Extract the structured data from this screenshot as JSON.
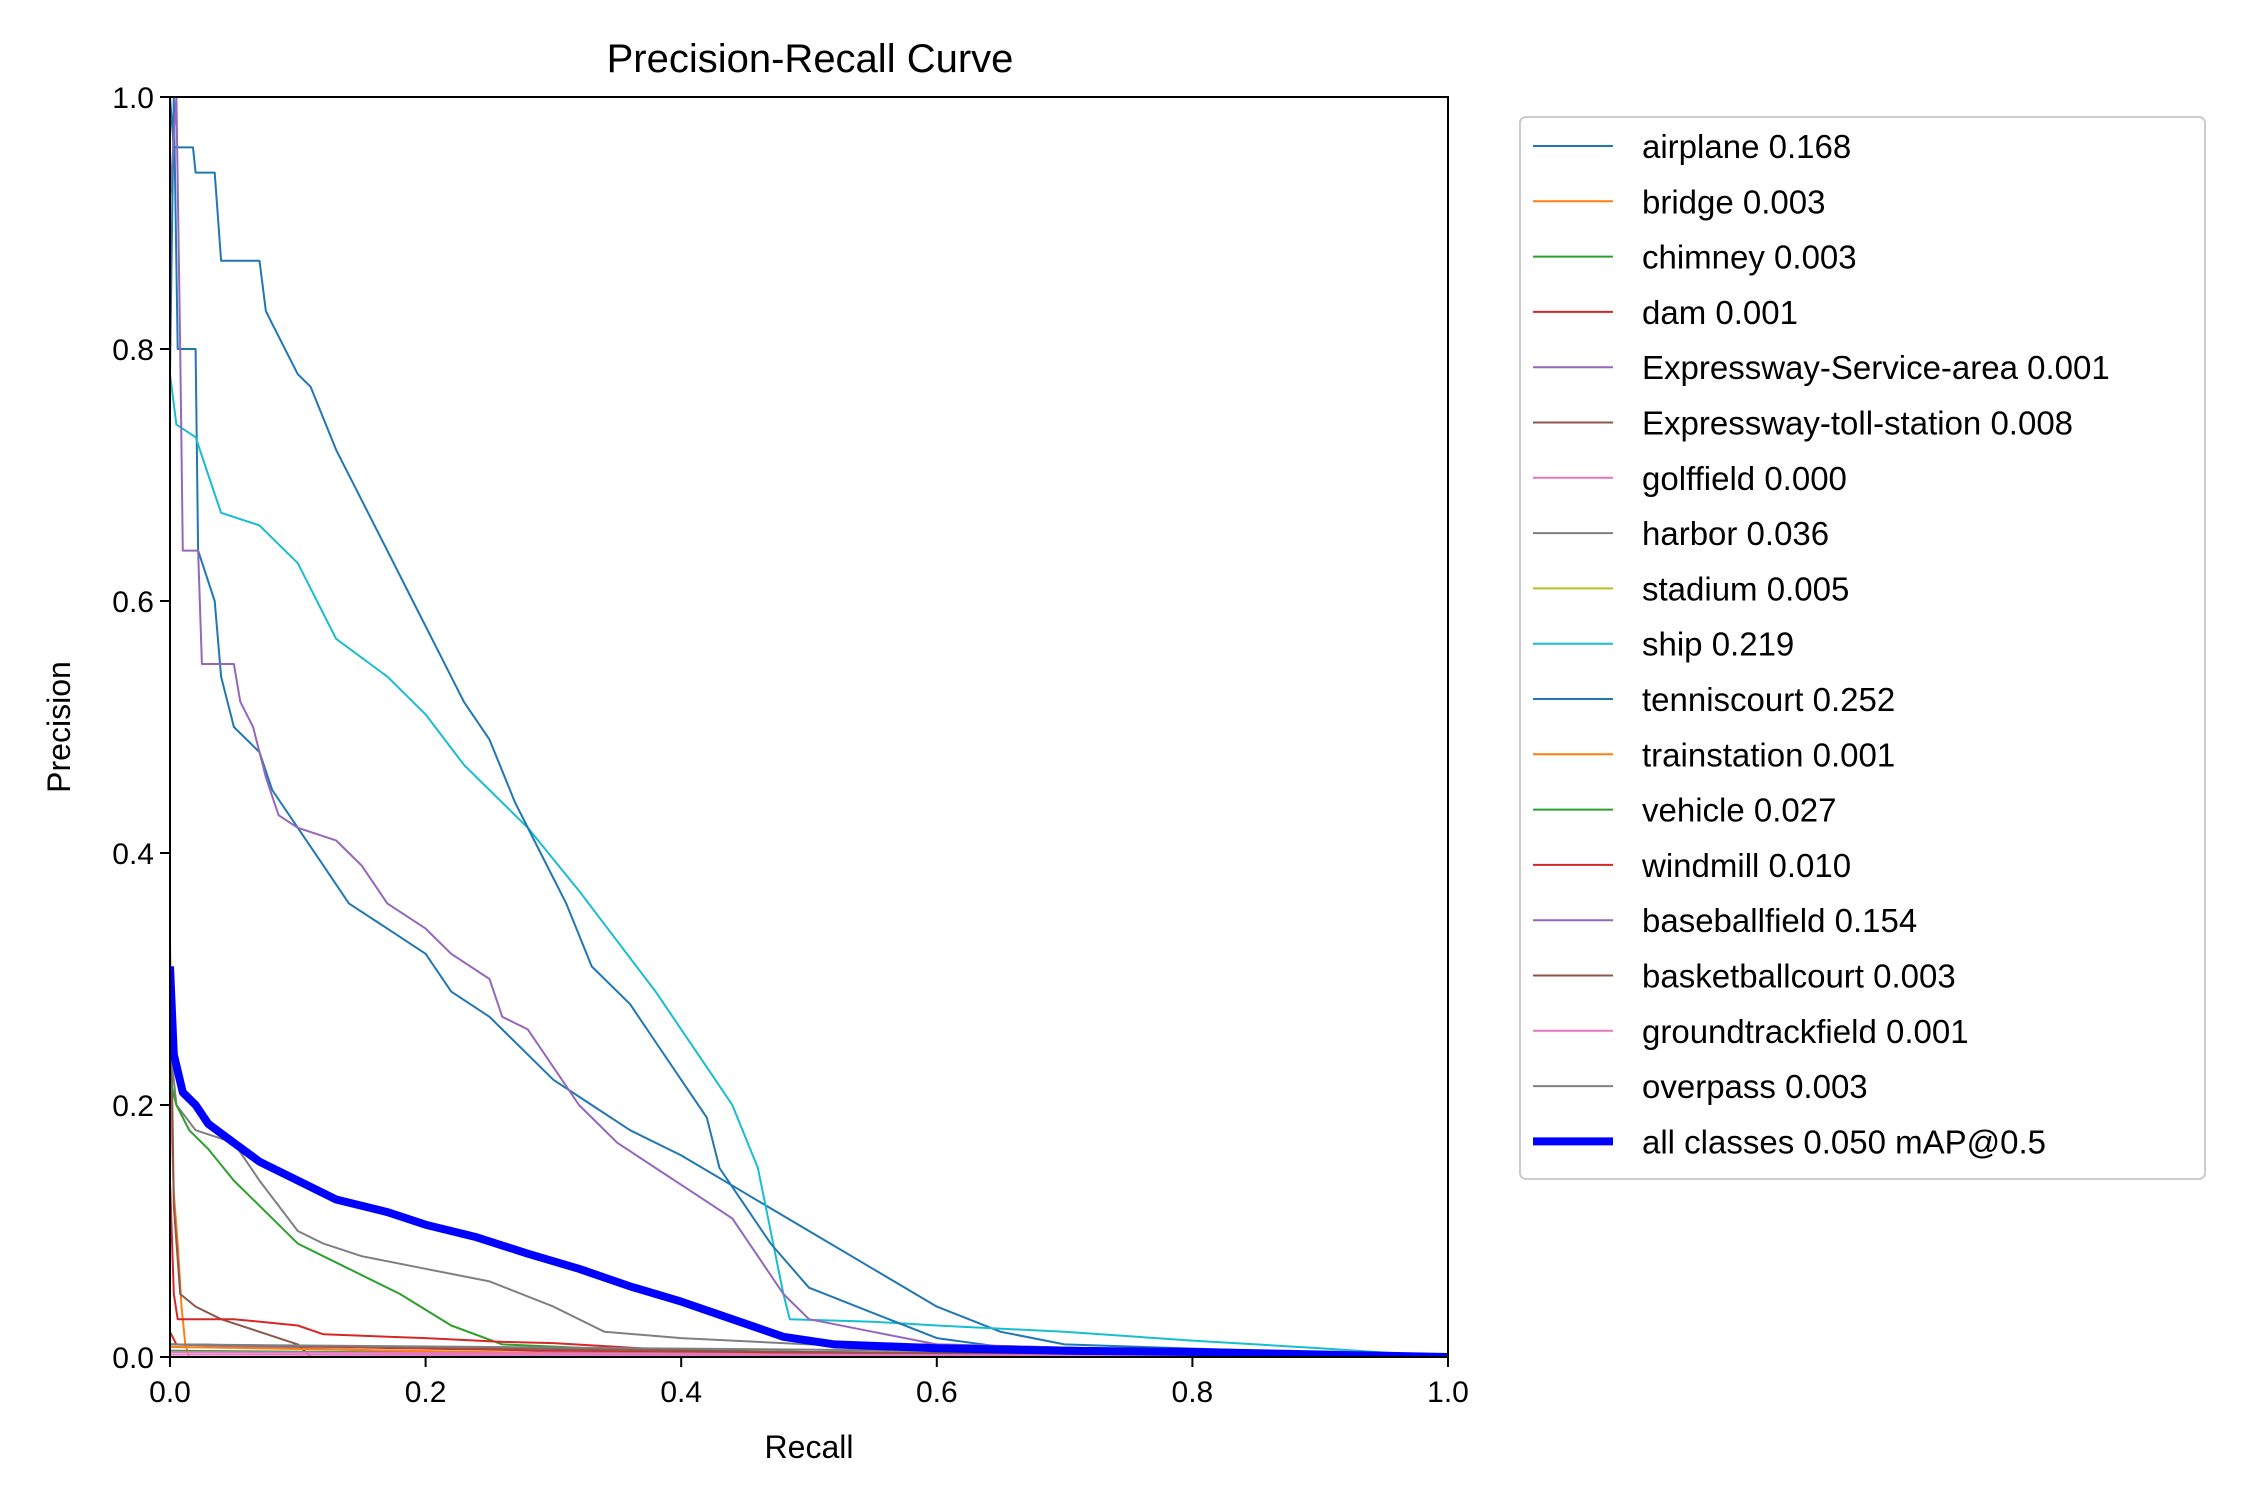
{
  "chart_data": {
    "type": "line",
    "title": "Precision-Recall Curve",
    "xlabel": "Recall",
    "ylabel": "Precision",
    "xlim": [
      0,
      1
    ],
    "ylim": [
      0,
      1
    ],
    "xticks": [
      "0.0",
      "0.2",
      "0.4",
      "0.6",
      "0.8",
      "1.0"
    ],
    "yticks": [
      "0.0",
      "0.2",
      "0.4",
      "0.6",
      "0.8",
      "1.0"
    ],
    "grid": false,
    "legend_position": "outside-right",
    "series": [
      {
        "name": "airplane 0.168",
        "color": "#1f77b4",
        "width": 2,
        "points": [
          [
            0.0,
            0.78
          ],
          [
            0.003,
            1.0
          ],
          [
            0.006,
            0.8
          ],
          [
            0.02,
            0.8
          ],
          [
            0.022,
            0.64
          ],
          [
            0.035,
            0.6
          ],
          [
            0.04,
            0.54
          ],
          [
            0.05,
            0.5
          ],
          [
            0.07,
            0.48
          ],
          [
            0.08,
            0.45
          ],
          [
            0.1,
            0.42
          ],
          [
            0.12,
            0.39
          ],
          [
            0.14,
            0.36
          ],
          [
            0.17,
            0.34
          ],
          [
            0.2,
            0.32
          ],
          [
            0.22,
            0.29
          ],
          [
            0.25,
            0.27
          ],
          [
            0.28,
            0.24
          ],
          [
            0.3,
            0.22
          ],
          [
            0.33,
            0.2
          ],
          [
            0.36,
            0.18
          ],
          [
            0.4,
            0.16
          ],
          [
            0.45,
            0.13
          ],
          [
            0.5,
            0.1
          ],
          [
            0.55,
            0.07
          ],
          [
            0.6,
            0.04
          ],
          [
            0.65,
            0.02
          ],
          [
            0.7,
            0.01
          ],
          [
            1.0,
            0.0
          ]
        ]
      },
      {
        "name": "bridge 0.003",
        "color": "#ff7f0e",
        "width": 2,
        "points": [
          [
            0.0,
            0.22
          ],
          [
            0.003,
            0.13
          ],
          [
            0.006,
            0.09
          ],
          [
            0.009,
            0.04
          ],
          [
            0.012,
            0.01
          ],
          [
            0.015,
            0.0
          ]
        ]
      },
      {
        "name": "chimney 0.003",
        "color": "#2ca02c",
        "width": 2,
        "points": [
          [
            0.0,
            0.005
          ],
          [
            0.4,
            0.002
          ],
          [
            1.0,
            0.0
          ]
        ]
      },
      {
        "name": "dam 0.001",
        "color": "#d62728",
        "width": 2,
        "points": [
          [
            0.0,
            0.02
          ],
          [
            0.005,
            0.01
          ],
          [
            0.3,
            0.005
          ],
          [
            1.0,
            0.0
          ]
        ]
      },
      {
        "name": "Expressway-Service-area 0.001",
        "color": "#9467bd",
        "width": 2,
        "points": [
          [
            0.0,
            0.01
          ],
          [
            0.2,
            0.004
          ],
          [
            1.0,
            0.0
          ]
        ]
      },
      {
        "name": "Expressway-toll-station 0.008",
        "color": "#8c564b",
        "width": 2,
        "points": [
          [
            0.0,
            0.33
          ],
          [
            0.003,
            0.12
          ],
          [
            0.008,
            0.05
          ],
          [
            0.02,
            0.04
          ],
          [
            0.04,
            0.03
          ],
          [
            0.07,
            0.02
          ],
          [
            0.1,
            0.01
          ],
          [
            0.11,
            0.0
          ]
        ]
      },
      {
        "name": "golffield 0.000",
        "color": "#e377c2",
        "width": 2,
        "points": [
          [
            0.0,
            0.002
          ],
          [
            1.0,
            0.0
          ]
        ]
      },
      {
        "name": "harbor 0.036",
        "color": "#7f7f7f",
        "width": 2,
        "points": [
          [
            0.0,
            0.25
          ],
          [
            0.005,
            0.2
          ],
          [
            0.02,
            0.18
          ],
          [
            0.05,
            0.17
          ],
          [
            0.07,
            0.14
          ],
          [
            0.1,
            0.1
          ],
          [
            0.12,
            0.09
          ],
          [
            0.15,
            0.08
          ],
          [
            0.2,
            0.07
          ],
          [
            0.25,
            0.06
          ],
          [
            0.3,
            0.04
          ],
          [
            0.34,
            0.02
          ],
          [
            0.4,
            0.015
          ],
          [
            0.5,
            0.01
          ],
          [
            0.6,
            0.01
          ],
          [
            0.8,
            0.005
          ],
          [
            1.0,
            0.0
          ]
        ]
      },
      {
        "name": "stadium 0.005",
        "color": "#bcbd22",
        "width": 2,
        "points": [
          [
            0.0,
            0.01
          ],
          [
            0.5,
            0.004
          ],
          [
            1.0,
            0.0
          ]
        ]
      },
      {
        "name": "ship 0.219",
        "color": "#17becf",
        "width": 2,
        "points": [
          [
            0.0,
            0.78
          ],
          [
            0.005,
            0.74
          ],
          [
            0.02,
            0.73
          ],
          [
            0.03,
            0.7
          ],
          [
            0.04,
            0.67
          ],
          [
            0.07,
            0.66
          ],
          [
            0.1,
            0.63
          ],
          [
            0.13,
            0.57
          ],
          [
            0.17,
            0.54
          ],
          [
            0.2,
            0.51
          ],
          [
            0.23,
            0.47
          ],
          [
            0.26,
            0.44
          ],
          [
            0.28,
            0.42
          ],
          [
            0.32,
            0.37
          ],
          [
            0.35,
            0.33
          ],
          [
            0.38,
            0.29
          ],
          [
            0.4,
            0.26
          ],
          [
            0.42,
            0.23
          ],
          [
            0.44,
            0.2
          ],
          [
            0.46,
            0.15
          ],
          [
            0.48,
            0.05
          ],
          [
            0.485,
            0.03
          ],
          [
            0.55,
            0.028
          ],
          [
            0.6,
            0.025
          ],
          [
            0.7,
            0.02
          ],
          [
            0.8,
            0.013
          ],
          [
            0.9,
            0.007
          ],
          [
            1.0,
            0.0
          ]
        ]
      },
      {
        "name": "tenniscourt 0.252",
        "color": "#1f77b4",
        "width": 2,
        "points": [
          [
            0.0,
            1.0
          ],
          [
            0.003,
            0.96
          ],
          [
            0.018,
            0.96
          ],
          [
            0.02,
            0.94
          ],
          [
            0.035,
            0.94
          ],
          [
            0.04,
            0.87
          ],
          [
            0.07,
            0.87
          ],
          [
            0.075,
            0.83
          ],
          [
            0.08,
            0.82
          ],
          [
            0.1,
            0.78
          ],
          [
            0.11,
            0.77
          ],
          [
            0.13,
            0.72
          ],
          [
            0.15,
            0.68
          ],
          [
            0.17,
            0.64
          ],
          [
            0.19,
            0.6
          ],
          [
            0.21,
            0.56
          ],
          [
            0.23,
            0.52
          ],
          [
            0.25,
            0.49
          ],
          [
            0.27,
            0.44
          ],
          [
            0.29,
            0.4
          ],
          [
            0.31,
            0.36
          ],
          [
            0.33,
            0.31
          ],
          [
            0.36,
            0.28
          ],
          [
            0.38,
            0.25
          ],
          [
            0.4,
            0.22
          ],
          [
            0.42,
            0.19
          ],
          [
            0.43,
            0.15
          ],
          [
            0.45,
            0.12
          ],
          [
            0.47,
            0.09
          ],
          [
            0.5,
            0.055
          ],
          [
            0.55,
            0.035
          ],
          [
            0.6,
            0.015
          ],
          [
            0.65,
            0.008
          ],
          [
            1.0,
            0.0
          ]
        ]
      },
      {
        "name": "trainstation 0.001",
        "color": "#ff7f0e",
        "width": 2,
        "points": [
          [
            0.0,
            0.008
          ],
          [
            0.3,
            0.003
          ],
          [
            1.0,
            0.0
          ]
        ]
      },
      {
        "name": "vehicle 0.027",
        "color": "#2ca02c",
        "width": 2,
        "points": [
          [
            0.0,
            0.22
          ],
          [
            0.005,
            0.2
          ],
          [
            0.015,
            0.18
          ],
          [
            0.03,
            0.165
          ],
          [
            0.05,
            0.14
          ],
          [
            0.07,
            0.12
          ],
          [
            0.1,
            0.09
          ],
          [
            0.14,
            0.07
          ],
          [
            0.18,
            0.05
          ],
          [
            0.22,
            0.025
          ],
          [
            0.26,
            0.01
          ],
          [
            0.35,
            0.006
          ],
          [
            0.5,
            0.004
          ],
          [
            1.0,
            0.0
          ]
        ]
      },
      {
        "name": "windmill 0.010",
        "color": "#d62728",
        "width": 2,
        "points": [
          [
            0.0,
            0.14
          ],
          [
            0.003,
            0.05
          ],
          [
            0.006,
            0.03
          ],
          [
            0.05,
            0.03
          ],
          [
            0.1,
            0.025
          ],
          [
            0.12,
            0.018
          ],
          [
            0.2,
            0.015
          ],
          [
            0.26,
            0.012
          ],
          [
            0.3,
            0.011
          ],
          [
            0.35,
            0.008
          ],
          [
            0.4,
            0.005
          ],
          [
            0.5,
            0.003
          ],
          [
            1.0,
            0.0
          ]
        ]
      },
      {
        "name": "baseballfield 0.154",
        "color": "#9467bd",
        "width": 2,
        "points": [
          [
            0.0,
            0.92
          ],
          [
            0.005,
            1.0
          ],
          [
            0.008,
            0.8
          ],
          [
            0.01,
            0.64
          ],
          [
            0.022,
            0.64
          ],
          [
            0.025,
            0.55
          ],
          [
            0.05,
            0.55
          ],
          [
            0.055,
            0.52
          ],
          [
            0.065,
            0.5
          ],
          [
            0.075,
            0.46
          ],
          [
            0.085,
            0.43
          ],
          [
            0.1,
            0.42
          ],
          [
            0.13,
            0.41
          ],
          [
            0.15,
            0.39
          ],
          [
            0.17,
            0.36
          ],
          [
            0.2,
            0.34
          ],
          [
            0.22,
            0.32
          ],
          [
            0.25,
            0.3
          ],
          [
            0.26,
            0.27
          ],
          [
            0.28,
            0.26
          ],
          [
            0.3,
            0.23
          ],
          [
            0.32,
            0.2
          ],
          [
            0.35,
            0.17
          ],
          [
            0.38,
            0.15
          ],
          [
            0.41,
            0.13
          ],
          [
            0.44,
            0.11
          ],
          [
            0.46,
            0.08
          ],
          [
            0.48,
            0.05
          ],
          [
            0.5,
            0.03
          ],
          [
            0.55,
            0.02
          ],
          [
            0.6,
            0.01
          ],
          [
            1.0,
            0.0
          ]
        ]
      },
      {
        "name": "basketballcourt 0.003",
        "color": "#8c564b",
        "width": 2,
        "points": [
          [
            0.0,
            0.01
          ],
          [
            0.5,
            0.004
          ],
          [
            1.0,
            0.0
          ]
        ]
      },
      {
        "name": "groundtrackfield 0.001",
        "color": "#e377c2",
        "width": 2,
        "points": [
          [
            0.0,
            0.004
          ],
          [
            1.0,
            0.0
          ]
        ]
      },
      {
        "name": "overpass 0.003",
        "color": "#7f7f7f",
        "width": 2,
        "points": [
          [
            0.0,
            0.01
          ],
          [
            0.6,
            0.005
          ],
          [
            1.0,
            0.0
          ]
        ]
      },
      {
        "name": "all classes 0.050 mAP@0.5",
        "color": "#0000ff",
        "width": 8,
        "points": [
          [
            0.0,
            0.31
          ],
          [
            0.003,
            0.24
          ],
          [
            0.01,
            0.21
          ],
          [
            0.02,
            0.2
          ],
          [
            0.03,
            0.185
          ],
          [
            0.05,
            0.17
          ],
          [
            0.07,
            0.155
          ],
          [
            0.1,
            0.14
          ],
          [
            0.13,
            0.125
          ],
          [
            0.17,
            0.115
          ],
          [
            0.2,
            0.105
          ],
          [
            0.24,
            0.095
          ],
          [
            0.28,
            0.082
          ],
          [
            0.32,
            0.07
          ],
          [
            0.36,
            0.056
          ],
          [
            0.4,
            0.044
          ],
          [
            0.44,
            0.03
          ],
          [
            0.48,
            0.016
          ],
          [
            0.52,
            0.01
          ],
          [
            0.6,
            0.007
          ],
          [
            0.7,
            0.005
          ],
          [
            0.8,
            0.004
          ],
          [
            0.9,
            0.002
          ],
          [
            1.0,
            0.0
          ]
        ]
      }
    ]
  }
}
